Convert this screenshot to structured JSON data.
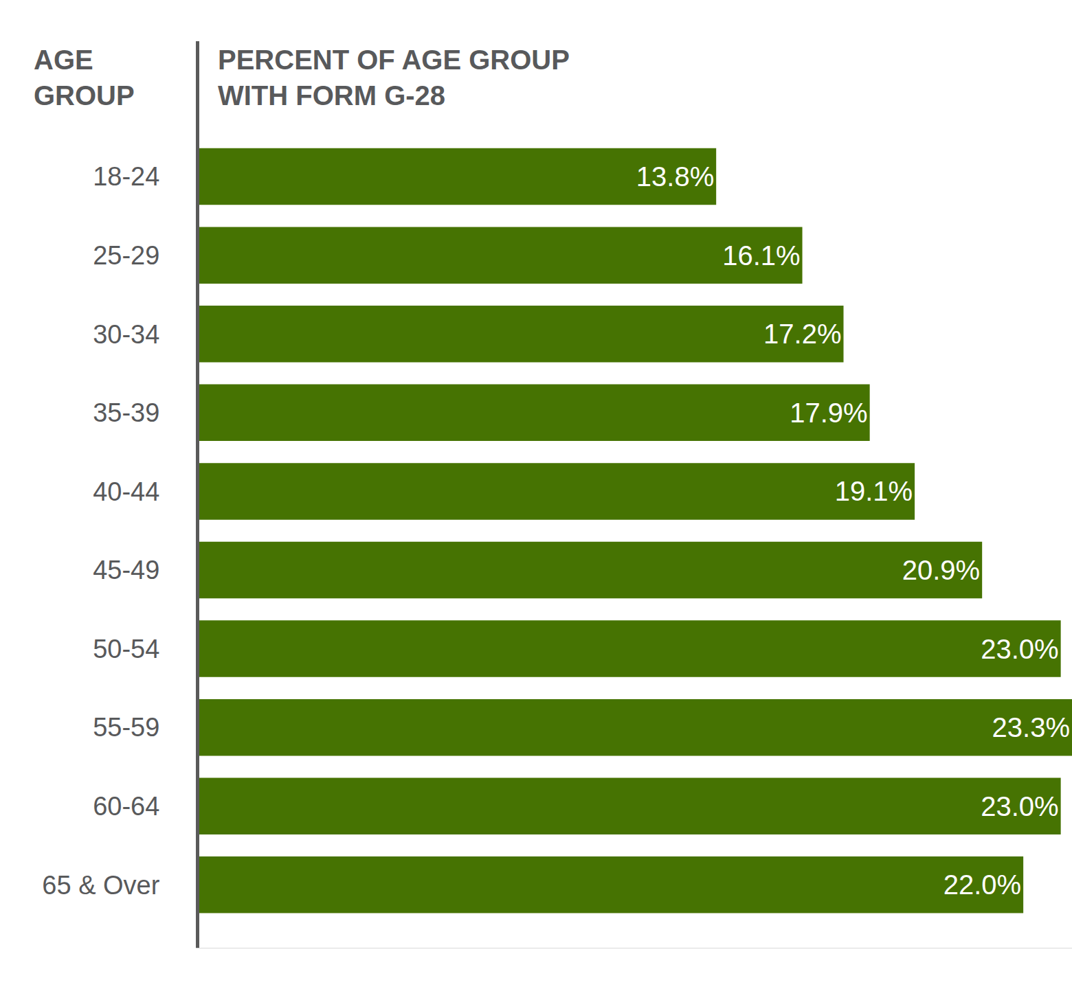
{
  "chart_data": {
    "type": "bar",
    "orientation": "horizontal",
    "xlabel": "PERCENT OF AGE GROUP WITH FORM G-28",
    "ylabel": "AGE GROUP",
    "categories": [
      "18-24",
      "25-29",
      "30-34",
      "35-39",
      "40-44",
      "45-49",
      "50-54",
      "55-59",
      "60-64",
      "65 & Over"
    ],
    "values": [
      13.8,
      16.1,
      17.2,
      17.9,
      19.1,
      20.9,
      23.0,
      23.3,
      23.0,
      22.0
    ],
    "value_labels": [
      "13.8%",
      "16.1%",
      "17.2%",
      "17.9%",
      "19.1%",
      "20.9%",
      "23.0%",
      "23.3%",
      "23.0%",
      "22.0%"
    ],
    "color": "#467302",
    "xlim": [
      0,
      23.3
    ],
    "xticks": [],
    "tick_labels": "y",
    "data_labels": true,
    "grid": false
  }
}
